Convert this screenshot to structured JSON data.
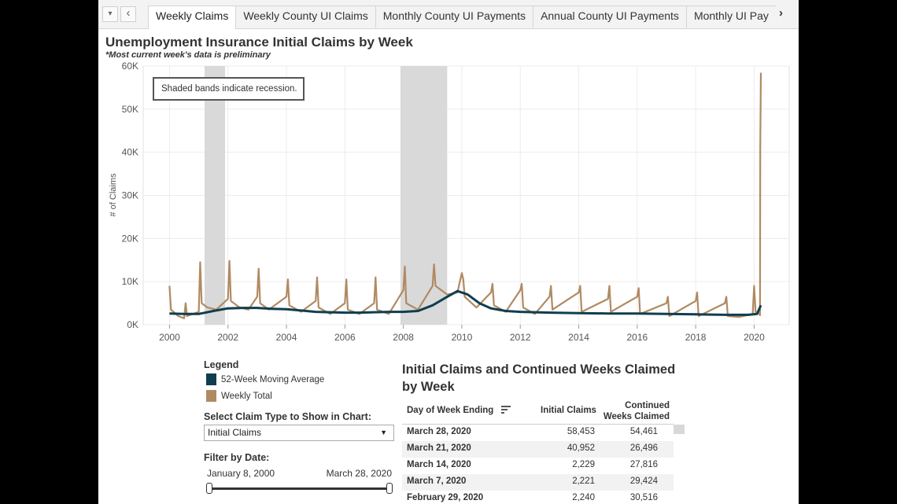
{
  "tabs": [
    "Weekly Claims",
    "Weekly County UI Claims",
    "Monthly County UI Payments",
    "Annual County UI Payments",
    "Monthly UI Pay"
  ],
  "active_tab": 0,
  "nav": {
    "dropdown_glyph": "▾",
    "prev_glyph": "‹",
    "next_glyph": "›"
  },
  "header": {
    "title": "Unemployment Insurance Initial Claims by Week",
    "subtitle": "*Most current week's data is preliminary"
  },
  "chart_data": {
    "type": "line",
    "title": "Unemployment Insurance Initial Claims by Week",
    "ylabel": "# of Claims",
    "xlabel": "",
    "ylim": [
      0,
      60000
    ],
    "xlim": [
      1999.1,
      2021.2
    ],
    "y_ticks": [
      "0K",
      "10K",
      "20K",
      "30K",
      "40K",
      "50K",
      "60K"
    ],
    "x_ticks": [
      "2000",
      "2002",
      "2004",
      "2006",
      "2008",
      "2010",
      "2012",
      "2014",
      "2016",
      "2018",
      "2020"
    ],
    "recessions": [
      [
        2001.2,
        2001.9
      ],
      [
        2007.9,
        2009.5
      ]
    ],
    "annotation": "Shaded bands indicate recession.",
    "series": [
      {
        "name": "52-Week Moving Average",
        "color": "#0f3e4f",
        "points": [
          [
            2000.0,
            2600
          ],
          [
            2000.5,
            2500
          ],
          [
            2001.0,
            2500
          ],
          [
            2001.5,
            3200
          ],
          [
            2002.0,
            3800
          ],
          [
            2002.5,
            3900
          ],
          [
            2003.0,
            3900
          ],
          [
            2003.5,
            3700
          ],
          [
            2004.0,
            3600
          ],
          [
            2004.5,
            3300
          ],
          [
            2005.0,
            3000
          ],
          [
            2005.5,
            2900
          ],
          [
            2006.0,
            2800
          ],
          [
            2006.5,
            2800
          ],
          [
            2007.0,
            2900
          ],
          [
            2007.5,
            3000
          ],
          [
            2008.0,
            3000
          ],
          [
            2008.5,
            3200
          ],
          [
            2009.0,
            4500
          ],
          [
            2009.5,
            6500
          ],
          [
            2009.85,
            7800
          ],
          [
            2010.2,
            7000
          ],
          [
            2010.6,
            5000
          ],
          [
            2011.0,
            3800
          ],
          [
            2011.5,
            3200
          ],
          [
            2012.0,
            3000
          ],
          [
            2013.0,
            2800
          ],
          [
            2014.0,
            2700
          ],
          [
            2015.0,
            2600
          ],
          [
            2016.0,
            2600
          ],
          [
            2017.0,
            2500
          ],
          [
            2018.0,
            2400
          ],
          [
            2019.0,
            2300
          ],
          [
            2019.8,
            2300
          ],
          [
            2020.1,
            2500
          ],
          [
            2020.23,
            4500
          ]
        ]
      },
      {
        "name": "Weekly Total",
        "color": "#b08a62",
        "points": [
          [
            2000.0,
            9000
          ],
          [
            2000.05,
            3500
          ],
          [
            2000.3,
            2000
          ],
          [
            2000.5,
            1500
          ],
          [
            2000.55,
            5000
          ],
          [
            2000.6,
            2000
          ],
          [
            2001.0,
            3000
          ],
          [
            2001.05,
            14500
          ],
          [
            2001.1,
            5000
          ],
          [
            2001.3,
            4000
          ],
          [
            2001.6,
            3500
          ],
          [
            2002.0,
            6000
          ],
          [
            2002.05,
            14800
          ],
          [
            2002.1,
            5500
          ],
          [
            2002.4,
            4000
          ],
          [
            2002.7,
            3500
          ],
          [
            2003.0,
            6500
          ],
          [
            2003.05,
            13000
          ],
          [
            2003.1,
            5000
          ],
          [
            2003.4,
            3500
          ],
          [
            2004.0,
            6500
          ],
          [
            2004.05,
            10500
          ],
          [
            2004.1,
            4500
          ],
          [
            2004.5,
            3000
          ],
          [
            2005.0,
            5500
          ],
          [
            2005.05,
            11000
          ],
          [
            2005.1,
            4000
          ],
          [
            2005.5,
            2500
          ],
          [
            2006.0,
            5000
          ],
          [
            2006.05,
            10500
          ],
          [
            2006.1,
            3500
          ],
          [
            2006.5,
            2500
          ],
          [
            2007.0,
            5000
          ],
          [
            2007.05,
            11000
          ],
          [
            2007.1,
            3500
          ],
          [
            2007.5,
            2500
          ],
          [
            2008.0,
            8000
          ],
          [
            2008.05,
            13500
          ],
          [
            2008.1,
            5000
          ],
          [
            2008.5,
            3500
          ],
          [
            2009.0,
            9000
          ],
          [
            2009.05,
            14000
          ],
          [
            2009.1,
            9000
          ],
          [
            2009.5,
            7000
          ],
          [
            2009.85,
            7500
          ],
          [
            2010.0,
            12000
          ],
          [
            2010.05,
            10500
          ],
          [
            2010.1,
            6500
          ],
          [
            2010.5,
            4000
          ],
          [
            2011.0,
            7500
          ],
          [
            2011.05,
            9500
          ],
          [
            2011.1,
            4500
          ],
          [
            2011.5,
            3000
          ],
          [
            2012.0,
            8000
          ],
          [
            2012.05,
            9500
          ],
          [
            2012.1,
            4000
          ],
          [
            2012.5,
            2500
          ],
          [
            2013.0,
            6500
          ],
          [
            2013.05,
            9000
          ],
          [
            2013.1,
            3500
          ],
          [
            2014.0,
            7500
          ],
          [
            2014.05,
            9000
          ],
          [
            2014.1,
            3000
          ],
          [
            2015.0,
            6000
          ],
          [
            2015.05,
            9000
          ],
          [
            2015.1,
            3000
          ],
          [
            2016.0,
            6500
          ],
          [
            2016.05,
            8500
          ],
          [
            2016.1,
            2500
          ],
          [
            2017.0,
            5000
          ],
          [
            2017.05,
            6500
          ],
          [
            2017.1,
            2000
          ],
          [
            2018.0,
            5500
          ],
          [
            2018.05,
            7500
          ],
          [
            2018.1,
            2000
          ],
          [
            2019.0,
            5000
          ],
          [
            2019.05,
            6500
          ],
          [
            2019.1,
            2000
          ],
          [
            2019.5,
            1800
          ],
          [
            2019.95,
            2500
          ],
          [
            2020.0,
            9000
          ],
          [
            2020.05,
            3000
          ],
          [
            2020.18,
            2500
          ],
          [
            2020.2,
            2229
          ],
          [
            2020.21,
            40952
          ],
          [
            2020.23,
            58453
          ]
        ]
      }
    ]
  },
  "legend": {
    "title": "Legend",
    "items": [
      {
        "label": "52-Week Moving Average",
        "color": "#0f3e4f"
      },
      {
        "label": "Weekly Total",
        "color": "#b08a62"
      }
    ]
  },
  "claim_type": {
    "label": "Select Claim Type to Show in Chart:",
    "value": "Initial Claims"
  },
  "date_filter": {
    "label": "Filter by Date:",
    "start": "January 8, 2000",
    "end": "March 28, 2020"
  },
  "table": {
    "title": "Initial Claims and Continued Weeks Claimed by Week",
    "headers": [
      "Day of Week Ending",
      "Initial Claims",
      "Continued Weeks Claimed"
    ],
    "rows": [
      [
        "March 28, 2020",
        "58,453",
        "54,461"
      ],
      [
        "March 21, 2020",
        "40,952",
        "26,496"
      ],
      [
        "March 14, 2020",
        "2,229",
        "27,816"
      ],
      [
        "March 7, 2020",
        "2,221",
        "29,424"
      ],
      [
        "February 29, 2020",
        "2,240",
        "30,516"
      ]
    ]
  }
}
